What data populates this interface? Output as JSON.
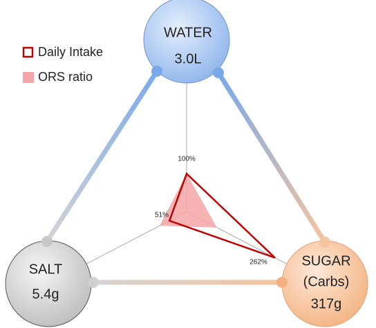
{
  "nodes": [
    {
      "label": "WATER",
      "amount": "3.0L"
    },
    {
      "label": "SALT",
      "amount": "5.4g"
    },
    {
      "label": "SUGAR",
      "sublabel": "(Carbs)",
      "amount": "317g"
    }
  ],
  "chart_data": {
    "type": "radar",
    "categories": [
      "WATER",
      "SALT",
      "SUGAR"
    ],
    "rlim": [
      0,
      100
    ],
    "series": [
      {
        "name": "Daily Intake",
        "color": "#c00000",
        "values": [
          100,
          51,
          262
        ],
        "value_labels": [
          "100%",
          "51%",
          "262%"
        ]
      },
      {
        "name": "ORS ratio",
        "color": "#f4a6a6",
        "values": [
          100,
          80,
          90
        ]
      }
    ]
  }
}
